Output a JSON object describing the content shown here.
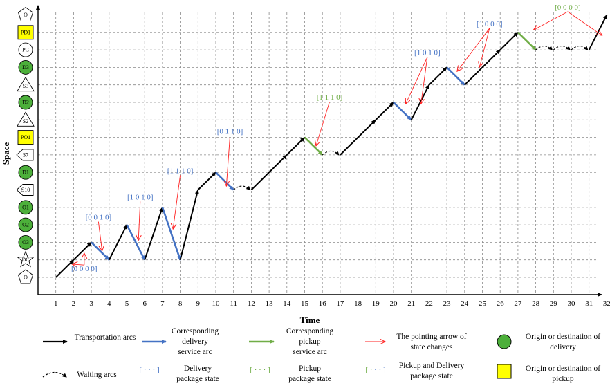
{
  "axes": {
    "x_title": "Time",
    "y_title": "Space",
    "x_ticks": [
      "1",
      "2",
      "3",
      "4",
      "5",
      "6",
      "7",
      "8",
      "9",
      "10",
      "11",
      "12",
      "13",
      "14",
      "15",
      "16",
      "17",
      "18",
      "19",
      "20",
      "21",
      "22",
      "23",
      "24",
      "25",
      "26",
      "27",
      "28",
      "29",
      "30",
      "31",
      "32"
    ]
  },
  "rows": [
    {
      "label": "O",
      "shape": "pentagon",
      "fill": "#ffffff"
    },
    {
      "label": "PD1",
      "shape": "square",
      "fill": "#ffff00"
    },
    {
      "label": "PC",
      "shape": "circle",
      "fill": "#ffffff"
    },
    {
      "label": "D3",
      "shape": "circle",
      "fill": "#4caf3a"
    },
    {
      "label": "S3",
      "shape": "triangle",
      "fill": "#ffffff"
    },
    {
      "label": "D2",
      "shape": "circle",
      "fill": "#4caf3a"
    },
    {
      "label": "S2",
      "shape": "triangle",
      "fill": "#ffffff"
    },
    {
      "label": "PO1",
      "shape": "square",
      "fill": "#ffff00"
    },
    {
      "label": "S7",
      "shape": "diamond",
      "fill": "#ffffff"
    },
    {
      "label": "D1",
      "shape": "circle",
      "fill": "#4caf3a"
    },
    {
      "label": "S10",
      "shape": "diamond",
      "fill": "#ffffff"
    },
    {
      "label": "O1",
      "shape": "circle",
      "fill": "#4caf3a"
    },
    {
      "label": "O2",
      "shape": "circle",
      "fill": "#4caf3a"
    },
    {
      "label": "O3",
      "shape": "circle",
      "fill": "#4caf3a"
    },
    {
      "label": "DC",
      "shape": "star",
      "fill": "#ffffff"
    },
    {
      "label": "O",
      "shape": "pentagon",
      "fill": "#ffffff"
    }
  ],
  "arcs": [
    {
      "type": "transport",
      "from": [
        1,
        0
      ],
      "to": [
        2,
        1
      ]
    },
    {
      "type": "transport",
      "from": [
        2,
        1
      ],
      "to": [
        3,
        2
      ]
    },
    {
      "type": "delivery",
      "from": [
        3,
        2
      ],
      "to": [
        4,
        1
      ]
    },
    {
      "type": "transport",
      "from": [
        4,
        1
      ],
      "to": [
        5,
        3
      ]
    },
    {
      "type": "delivery",
      "from": [
        5,
        3
      ],
      "to": [
        6,
        1
      ]
    },
    {
      "type": "transport",
      "from": [
        6,
        1
      ],
      "to": [
        7,
        4
      ]
    },
    {
      "type": "delivery",
      "from": [
        7,
        4
      ],
      "to": [
        8,
        1
      ]
    },
    {
      "type": "transport",
      "from": [
        8,
        1
      ],
      "to": [
        9,
        5
      ]
    },
    {
      "type": "transport",
      "from": [
        9,
        5
      ],
      "to": [
        10,
        6
      ]
    },
    {
      "type": "delivery",
      "from": [
        10,
        6
      ],
      "to": [
        11,
        5
      ]
    },
    {
      "type": "waiting",
      "from": [
        11,
        5
      ],
      "to": [
        12,
        5
      ]
    },
    {
      "type": "transport",
      "from": [
        12,
        5
      ],
      "to": [
        14,
        7
      ]
    },
    {
      "type": "transport",
      "from": [
        14,
        7
      ],
      "to": [
        15,
        8
      ]
    },
    {
      "type": "pickup",
      "from": [
        15,
        8
      ],
      "to": [
        16,
        7
      ]
    },
    {
      "type": "waiting",
      "from": [
        16,
        7
      ],
      "to": [
        17,
        7
      ]
    },
    {
      "type": "transport",
      "from": [
        17,
        7
      ],
      "to": [
        19,
        9
      ]
    },
    {
      "type": "transport",
      "from": [
        19,
        9
      ],
      "to": [
        20,
        10
      ]
    },
    {
      "type": "delivery",
      "from": [
        20,
        10
      ],
      "to": [
        21,
        9
      ]
    },
    {
      "type": "transport",
      "from": [
        21,
        9
      ],
      "to": [
        22,
        11
      ]
    },
    {
      "type": "transport",
      "from": [
        22,
        11
      ],
      "to": [
        23,
        12
      ]
    },
    {
      "type": "delivery",
      "from": [
        23,
        12
      ],
      "to": [
        24,
        11
      ]
    },
    {
      "type": "transport",
      "from": [
        24,
        11
      ],
      "to": [
        26,
        13
      ]
    },
    {
      "type": "transport",
      "from": [
        26,
        13
      ],
      "to": [
        27,
        14
      ]
    },
    {
      "type": "pickup",
      "from": [
        27,
        14
      ],
      "to": [
        28,
        13
      ]
    },
    {
      "type": "waiting",
      "from": [
        28,
        13
      ],
      "to": [
        29,
        13
      ]
    },
    {
      "type": "waiting",
      "from": [
        29,
        13
      ],
      "to": [
        30,
        13
      ]
    },
    {
      "type": "waiting",
      "from": [
        30,
        13
      ],
      "to": [
        31,
        13
      ]
    },
    {
      "type": "transport",
      "from": [
        31,
        13
      ],
      "to": [
        32,
        15
      ]
    }
  ],
  "state_labels": [
    {
      "text": "[0 0 0 0]",
      "type": "delivery",
      "at": [
        2.6,
        0.35
      ],
      "pointers": [
        [
          1.95,
          0.75
        ],
        [
          2.6,
          1.35
        ]
      ]
    },
    {
      "text": "[0 0 1 0]",
      "type": "delivery",
      "at": [
        3.4,
        3.3
      ],
      "pointers": [
        [
          3.6,
          1.55
        ]
      ]
    },
    {
      "text": "[1 0 1 0]",
      "type": "delivery",
      "at": [
        5.75,
        4.45
      ],
      "pointers": [
        [
          5.65,
          2.15
        ]
      ]
    },
    {
      "text": "[1 1 1 0]",
      "type": "delivery",
      "at": [
        8.0,
        5.95
      ],
      "pointers": [
        [
          7.6,
          2.8
        ]
      ]
    },
    {
      "text": "[0 1 1 0]",
      "type": "delivery",
      "at": [
        10.8,
        8.2
      ],
      "pointers": [
        [
          10.6,
          5.25
        ]
      ]
    },
    {
      "text": "[1 1 1 0]",
      "type": "pickup",
      "at": [
        16.4,
        10.15
      ],
      "pointers": [
        [
          15.65,
          7.55
        ]
      ]
    },
    {
      "text": "[1 0 1 0]",
      "type": "delivery",
      "at": [
        21.9,
        12.7
      ],
      "pointers": [
        [
          20.7,
          9.95
        ],
        [
          21.55,
          9.95
        ]
      ]
    },
    {
      "text": "[1 0 0 0]",
      "type": "delivery",
      "at": [
        25.4,
        14.35
      ],
      "pointers": [
        [
          23.6,
          11.8
        ],
        [
          24.85,
          12.05
        ]
      ]
    },
    {
      "text": "[0 0 0 0]",
      "type": "pickup",
      "at": [
        29.8,
        15.3
      ],
      "pointers": [
        [
          27.9,
          14.15
        ],
        [
          31.7,
          13.85
        ]
      ]
    }
  ],
  "legend": {
    "transport": "Transportation arcs",
    "delivery_arc": [
      "Corresponding",
      "delivery",
      "service arc"
    ],
    "pickup_arc": [
      "Corresponding",
      "pickup",
      "service arc"
    ],
    "pointer": [
      "The pointing arrow of",
      "state changes"
    ],
    "delivery_node": [
      "Origin or destination of",
      "delivery"
    ],
    "waiting": "Waiting arcs",
    "delivery_state": [
      "Delivery",
      "package state"
    ],
    "pickup_state": [
      "Pickup",
      "package state"
    ],
    "both_state": [
      "Pickup and Delivery",
      "package state"
    ],
    "pickup_node": [
      "Origin or destination of",
      "pickup"
    ],
    "bracket_sample": "[ · · · ]"
  },
  "colors": {
    "transport": "#000000",
    "delivery": "#4472c4",
    "pickup": "#70ad47",
    "pointer": "#ff2020",
    "delivery_node": "#4caf3a",
    "pickup_node": "#ffff00"
  }
}
